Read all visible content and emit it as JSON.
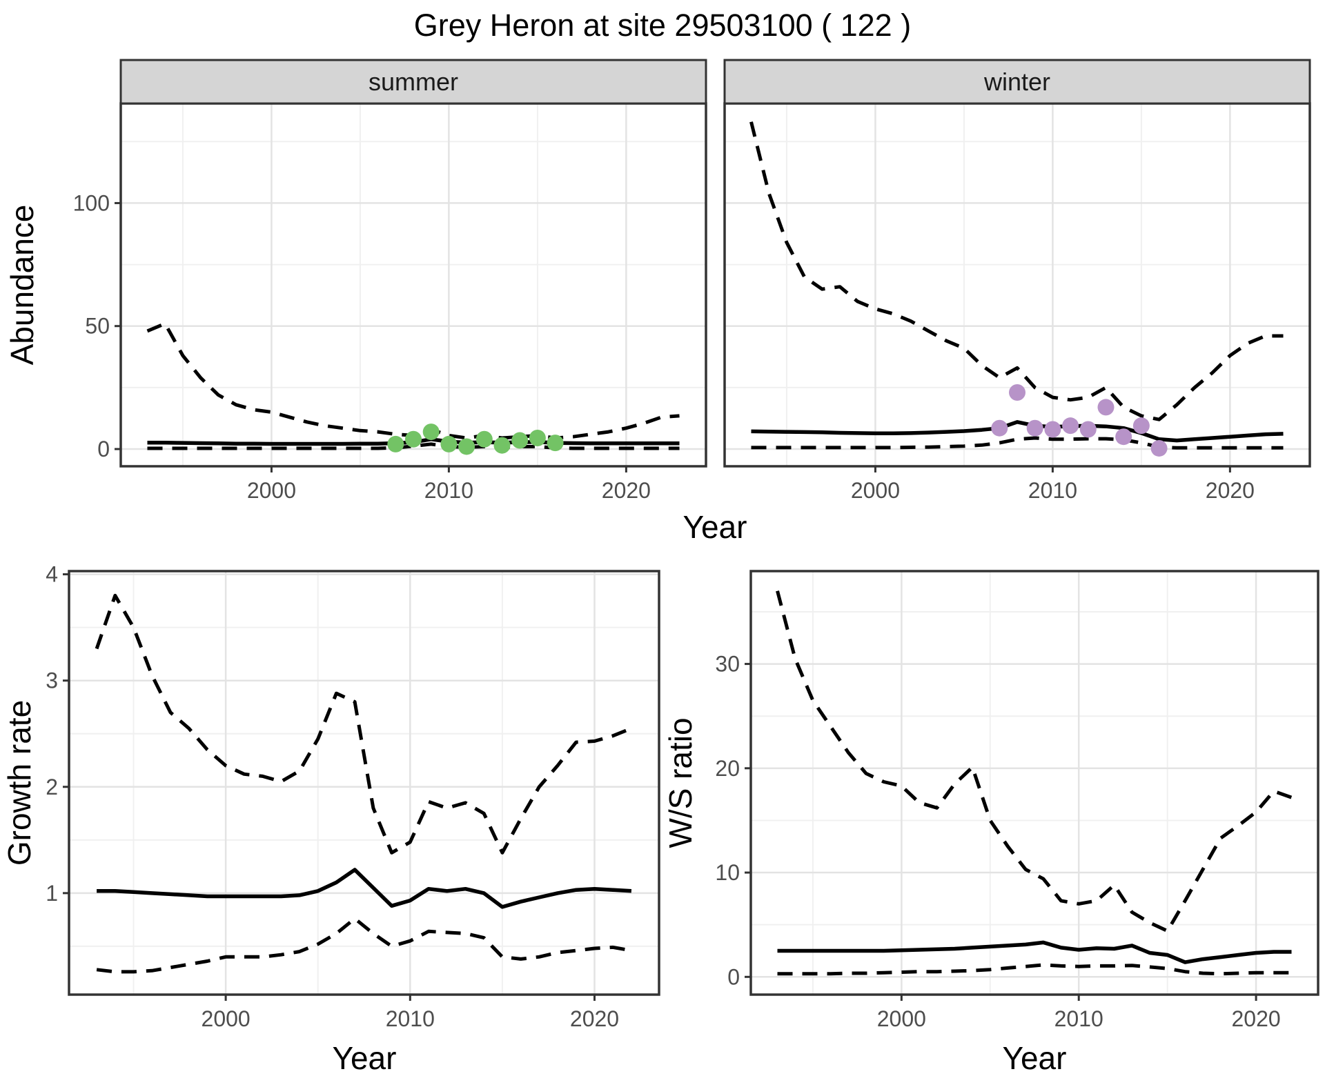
{
  "title": "Grey Heron at site 29503100 ( 122 )",
  "figure": {
    "background": "#ffffff",
    "panel_bg": "#ffffff",
    "strip_fill": "#d5d5d5",
    "panel_border_color": "#333333",
    "grid_major_color": "#e3e3e3",
    "grid_minor_color": "#f0f0f0",
    "line_color": "#000000",
    "tick_color": "#333333",
    "tick_label_color": "#4d4d4d",
    "summer_point_color": "#73c365",
    "winter_point_color": "#b793c8"
  },
  "chart_data": [
    {
      "id": "abundance-summer",
      "type": "line",
      "facet_label": "summer",
      "ylabel": "Abundance",
      "xlabel": "Year",
      "x_ticks": [
        2000,
        2010,
        2020
      ],
      "x_minor": [
        1995,
        2005,
        2015
      ],
      "y_ticks": [
        0,
        50,
        100
      ],
      "y_minor": [
        25,
        75,
        125
      ],
      "xlim": [
        1991.5,
        2024.5
      ],
      "ylim": [
        -7,
        140.5
      ],
      "x": [
        1993,
        1994,
        1995,
        1996,
        1997,
        1998,
        1999,
        2000,
        2001,
        2002,
        2003,
        2004,
        2005,
        2006,
        2007,
        2008,
        2009,
        2010,
        2011,
        2012,
        2013,
        2014,
        2015,
        2016,
        2017,
        2018,
        2019,
        2020,
        2021,
        2022,
        2023
      ],
      "series": [
        {
          "name": "upper-ci",
          "style": "dashed",
          "values": [
            48,
            51,
            38,
            29,
            22,
            18,
            16,
            15,
            13,
            11,
            9.5,
            8.5,
            7.5,
            7,
            6,
            5.5,
            8,
            5.5,
            4.5,
            5.5,
            4.5,
            5,
            5.5,
            4.5,
            5,
            6,
            7,
            8.5,
            10.5,
            13,
            13.5
          ]
        },
        {
          "name": "estimate",
          "style": "solid",
          "values": [
            2.6,
            2.6,
            2.5,
            2.4,
            2.3,
            2.2,
            2.2,
            2.1,
            2.1,
            2.1,
            2.1,
            2.1,
            2.2,
            2.2,
            2.4,
            2.8,
            4.0,
            3.0,
            2.6,
            2.8,
            2.6,
            2.8,
            2.9,
            2.5,
            2.4,
            2.3,
            2.3,
            2.3,
            2.3,
            2.3,
            2.3
          ]
        },
        {
          "name": "lower-ci",
          "style": "dashed",
          "values": [
            0.3,
            0.3,
            0.3,
            0.3,
            0.3,
            0.3,
            0.3,
            0.3,
            0.3,
            0.3,
            0.3,
            0.3,
            0.3,
            0.3,
            0.5,
            1.2,
            2.0,
            1.0,
            0.7,
            1.0,
            0.7,
            1.0,
            1.0,
            0.5,
            0.3,
            0.3,
            0.3,
            0.3,
            0.3,
            0.3,
            0.3
          ]
        }
      ],
      "points": {
        "name": "observed-summer",
        "color": "#73c365",
        "x": [
          2007,
          2008,
          2009,
          2010,
          2011,
          2012,
          2013,
          2014,
          2015,
          2016
        ],
        "values": [
          2,
          4,
          7,
          2,
          1,
          4,
          1.5,
          3.5,
          4.5,
          2.5
        ]
      }
    },
    {
      "id": "abundance-winter",
      "type": "line",
      "facet_label": "winter",
      "ylabel": "Abundance",
      "xlabel": "Year",
      "x_ticks": [
        2000,
        2010,
        2020
      ],
      "x_minor": [
        1995,
        2005,
        2015
      ],
      "y_ticks": [
        0,
        50,
        100
      ],
      "y_minor": [
        25,
        75,
        125
      ],
      "xlim": [
        1991.5,
        2024.5
      ],
      "ylim": [
        -7,
        140.5
      ],
      "x": [
        1993,
        1994,
        1995,
        1996,
        1997,
        1998,
        1999,
        2000,
        2001,
        2002,
        2003,
        2004,
        2005,
        2006,
        2007,
        2008,
        2009,
        2010,
        2011,
        2012,
        2013,
        2014,
        2015,
        2016,
        2017,
        2018,
        2019,
        2020,
        2021,
        2022,
        2023
      ],
      "series": [
        {
          "name": "upper-ci",
          "style": "dashed",
          "values": [
            133,
            104,
            84,
            70,
            65,
            66,
            60,
            57,
            55,
            52,
            48,
            44,
            41,
            34,
            29,
            33,
            25,
            21,
            20,
            21,
            25,
            17,
            13.5,
            12,
            18,
            25,
            31,
            38,
            43,
            46,
            46
          ]
        },
        {
          "name": "estimate",
          "style": "solid",
          "values": [
            7.2,
            7.1,
            7.0,
            6.9,
            6.8,
            6.6,
            6.5,
            6.4,
            6.4,
            6.5,
            6.7,
            7.0,
            7.3,
            7.8,
            8.5,
            11,
            9.5,
            9.0,
            9.3,
            9.5,
            9.2,
            8.5,
            6.5,
            4.0,
            3.5,
            4.0,
            4.5,
            5.0,
            5.5,
            6.0,
            6.2
          ]
        },
        {
          "name": "lower-ci",
          "style": "dashed",
          "values": [
            0.6,
            0.6,
            0.6,
            0.6,
            0.6,
            0.6,
            0.6,
            0.6,
            0.6,
            0.7,
            0.8,
            1.0,
            1.2,
            1.6,
            2.5,
            4.0,
            4.5,
            4.0,
            4.0,
            4.2,
            4.2,
            3.8,
            2.5,
            0.8,
            0.5,
            0.5,
            0.5,
            0.5,
            0.5,
            0.5,
            0.5
          ]
        }
      ],
      "points": {
        "name": "observed-winter",
        "color": "#b793c8",
        "x": [
          2007,
          2008,
          2009,
          2010,
          2011,
          2012,
          2013,
          2014,
          2015,
          2016
        ],
        "values": [
          8.5,
          23,
          8.5,
          8,
          9.5,
          8,
          17,
          5,
          9.5,
          0.3
        ]
      }
    },
    {
      "id": "growth-rate",
      "type": "line",
      "facet_label": null,
      "ylabel": "Growth rate",
      "xlabel": "Year",
      "x_ticks": [
        2000,
        2010,
        2020
      ],
      "x_minor": [
        1995,
        2005,
        2015
      ],
      "y_ticks": [
        1,
        2,
        3,
        4
      ],
      "y_minor": [
        0.5,
        1.5,
        2.5,
        3.5
      ],
      "xlim": [
        1991.5,
        2023.5
      ],
      "ylim": [
        0.045,
        4.03
      ],
      "x": [
        1993,
        1994,
        1995,
        1996,
        1997,
        1998,
        1999,
        2000,
        2001,
        2002,
        2003,
        2004,
        2005,
        2006,
        2007,
        2008,
        2009,
        2010,
        2011,
        2012,
        2013,
        2014,
        2015,
        2016,
        2017,
        2018,
        2019,
        2020,
        2021,
        2022
      ],
      "series": [
        {
          "name": "upper-ci",
          "style": "dashed",
          "values": [
            3.3,
            3.8,
            3.5,
            3.05,
            2.7,
            2.55,
            2.35,
            2.2,
            2.12,
            2.1,
            2.05,
            2.15,
            2.45,
            2.88,
            2.8,
            1.8,
            1.38,
            1.48,
            1.86,
            1.8,
            1.85,
            1.75,
            1.38,
            1.7,
            2.0,
            2.2,
            2.42,
            2.43,
            2.48,
            2.55
          ]
        },
        {
          "name": "estimate",
          "style": "solid",
          "values": [
            1.02,
            1.02,
            1.01,
            1.0,
            0.99,
            0.98,
            0.97,
            0.97,
            0.97,
            0.97,
            0.97,
            0.98,
            1.02,
            1.1,
            1.22,
            1.05,
            0.88,
            0.93,
            1.04,
            1.02,
            1.04,
            1.0,
            0.87,
            0.92,
            0.96,
            1.0,
            1.03,
            1.04,
            1.03,
            1.02
          ]
        },
        {
          "name": "lower-ci",
          "style": "dashed",
          "values": [
            0.28,
            0.26,
            0.26,
            0.27,
            0.3,
            0.33,
            0.36,
            0.4,
            0.4,
            0.4,
            0.42,
            0.45,
            0.52,
            0.62,
            0.76,
            0.62,
            0.5,
            0.55,
            0.64,
            0.63,
            0.62,
            0.58,
            0.4,
            0.38,
            0.4,
            0.44,
            0.46,
            0.48,
            0.49,
            0.46
          ]
        }
      ],
      "points": null
    },
    {
      "id": "ws-ratio",
      "type": "line",
      "facet_label": null,
      "ylabel": "W/S ratio",
      "xlabel": "Year",
      "x_ticks": [
        2000,
        2010,
        2020
      ],
      "x_minor": [
        1995,
        2005,
        2015
      ],
      "y_ticks": [
        0,
        10,
        20,
        30
      ],
      "y_minor": [
        5,
        15,
        25,
        35
      ],
      "xlim": [
        1991.5,
        2023.5
      ],
      "ylim": [
        -1.7,
        38.9
      ],
      "x": [
        1993,
        1994,
        1995,
        1996,
        1997,
        1998,
        1999,
        2000,
        2001,
        2002,
        2003,
        2004,
        2005,
        2006,
        2007,
        2008,
        2009,
        2010,
        2011,
        2012,
        2013,
        2014,
        2015,
        2016,
        2017,
        2018,
        2019,
        2020,
        2021,
        2022
      ],
      "series": [
        {
          "name": "upper-ci",
          "style": "dashed",
          "values": [
            37,
            30.5,
            26.5,
            24,
            21.5,
            19.5,
            18.7,
            18.3,
            16.7,
            16.2,
            18.5,
            20.1,
            15,
            12.5,
            10.3,
            9.4,
            7.3,
            7.0,
            7.3,
            8.8,
            6.2,
            5.2,
            4.4,
            7.3,
            10.3,
            13.3,
            14.5,
            15.8,
            17.8,
            17.2
          ]
        },
        {
          "name": "estimate",
          "style": "solid",
          "values": [
            2.5,
            2.5,
            2.5,
            2.5,
            2.5,
            2.5,
            2.5,
            2.55,
            2.6,
            2.65,
            2.7,
            2.8,
            2.9,
            3.0,
            3.1,
            3.3,
            2.8,
            2.6,
            2.75,
            2.7,
            3.0,
            2.3,
            2.1,
            1.4,
            1.7,
            1.9,
            2.1,
            2.3,
            2.4,
            2.4
          ]
        },
        {
          "name": "lower-ci",
          "style": "dashed",
          "values": [
            0.3,
            0.3,
            0.3,
            0.3,
            0.35,
            0.35,
            0.4,
            0.45,
            0.5,
            0.5,
            0.55,
            0.6,
            0.7,
            0.85,
            1.0,
            1.15,
            1.05,
            1.0,
            1.05,
            1.05,
            1.1,
            0.95,
            0.8,
            0.5,
            0.35,
            0.3,
            0.35,
            0.4,
            0.4,
            0.4
          ]
        }
      ],
      "points": null
    }
  ]
}
